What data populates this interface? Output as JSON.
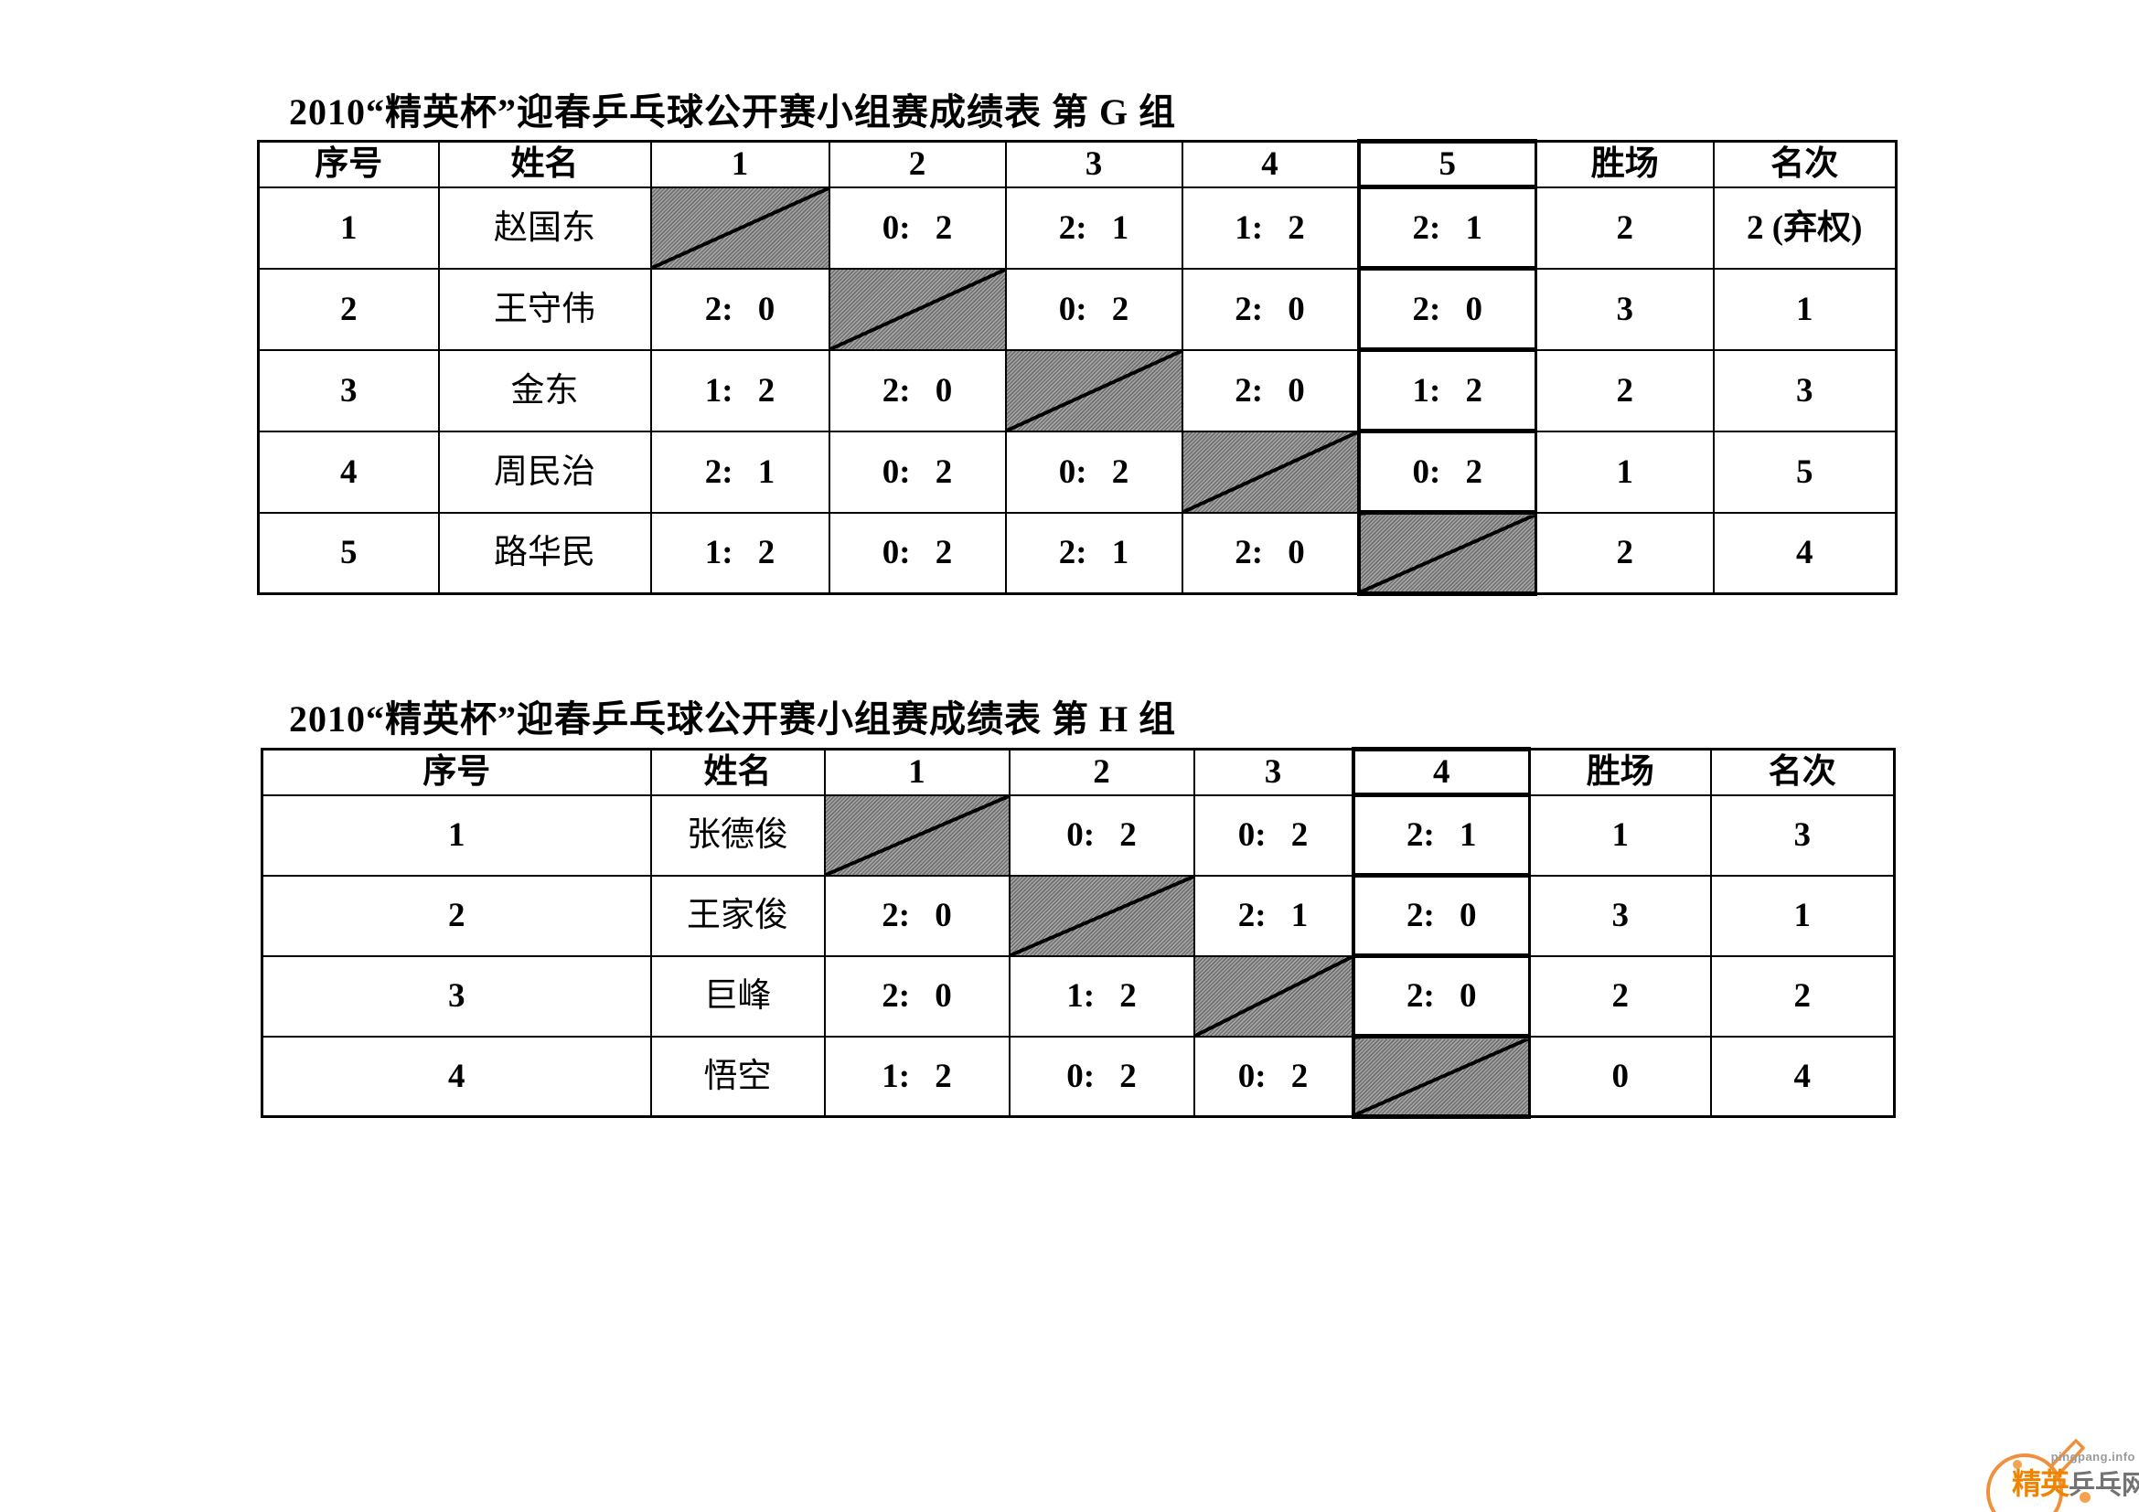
{
  "tables": [
    {
      "title": "2010“精英杯”迎春乒乓球公开赛小组赛成绩表 第 G 组",
      "headers": [
        "序号",
        "姓名",
        "1",
        "2",
        "3",
        "4",
        "5",
        "胜场",
        "名次"
      ],
      "highlight_column": "5",
      "players": [
        {
          "no": "1",
          "name": "赵国东",
          "results": [
            null,
            "0: 2",
            "2: 1",
            "1: 2",
            "2: 1"
          ],
          "wins": "2",
          "rank": "2 (弃权)"
        },
        {
          "no": "2",
          "name": "王守伟",
          "results": [
            "2: 0",
            null,
            "0: 2",
            "2: 0",
            "2: 0"
          ],
          "wins": "3",
          "rank": "1"
        },
        {
          "no": "3",
          "name": "金东",
          "results": [
            "1: 2",
            "2: 0",
            null,
            "2: 0",
            "1: 2"
          ],
          "wins": "2",
          "rank": "3"
        },
        {
          "no": "4",
          "name": "周民治",
          "results": [
            "2: 1",
            "0: 2",
            "0: 2",
            null,
            "0: 2"
          ],
          "wins": "1",
          "rank": "5"
        },
        {
          "no": "5",
          "name": "路华民",
          "results": [
            "1: 2",
            "0: 2",
            "2: 1",
            "2: 0",
            null
          ],
          "wins": "2",
          "rank": "4"
        }
      ]
    },
    {
      "title": "2010“精英杯”迎春乒乓球公开赛小组赛成绩表 第 H 组",
      "headers": [
        "序号",
        "姓名",
        "1",
        "2",
        "3",
        "4",
        "胜场",
        "名次"
      ],
      "highlight_column": "4",
      "players": [
        {
          "no": "1",
          "name": "张德俊",
          "results": [
            null,
            "0: 2",
            "0: 2",
            "2: 1"
          ],
          "wins": "1",
          "rank": "3"
        },
        {
          "no": "2",
          "name": "王家俊",
          "results": [
            "2: 0",
            null,
            "2: 1",
            "2: 0"
          ],
          "wins": "3",
          "rank": "1"
        },
        {
          "no": "3",
          "name": "巨峰",
          "results": [
            "2: 0",
            "1: 2",
            null,
            "2: 0"
          ],
          "wins": "2",
          "rank": "2"
        },
        {
          "no": "4",
          "name": "悟空",
          "results": [
            "1: 2",
            "0: 2",
            "0: 2",
            null
          ],
          "wins": "0",
          "rank": "4"
        }
      ]
    }
  ],
  "watermark": {
    "site": "pingpang.info",
    "brand_left": "精英",
    "brand_right": "乒乓网"
  },
  "colors": {
    "accent_orange": "#f08300",
    "brand_gray": "#737373"
  }
}
